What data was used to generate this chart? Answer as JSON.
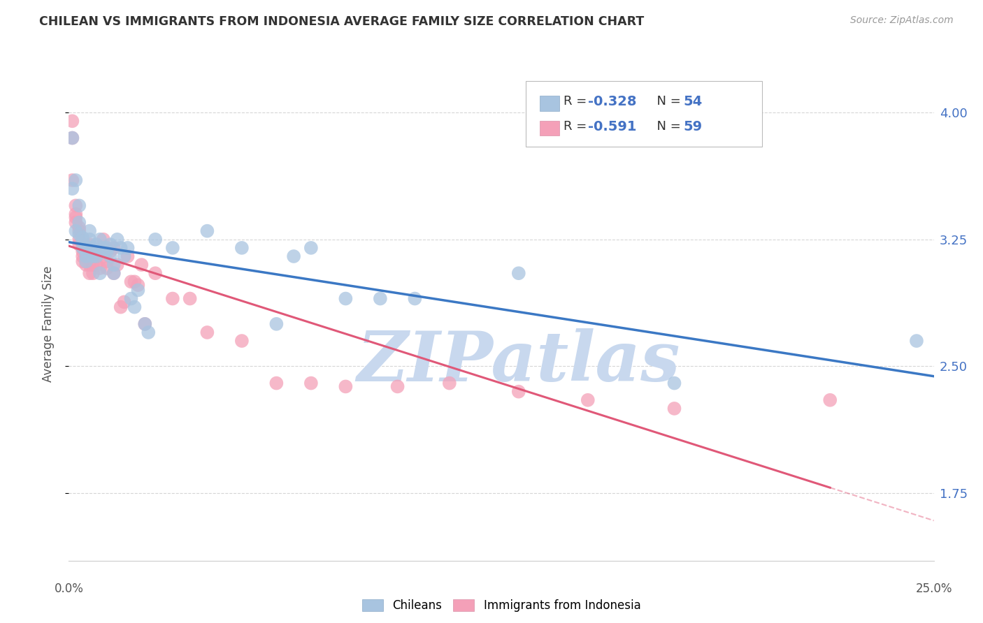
{
  "title": "CHILEAN VS IMMIGRANTS FROM INDONESIA AVERAGE FAMILY SIZE CORRELATION CHART",
  "source": "Source: ZipAtlas.com",
  "ylabel": "Average Family Size",
  "yticks": [
    1.75,
    2.5,
    3.25,
    4.0
  ],
  "xlim": [
    0.0,
    0.25
  ],
  "ylim": [
    1.35,
    4.15
  ],
  "watermark": "ZIPatlas",
  "legend_chilean_R": "-0.328",
  "legend_chilean_N": "54",
  "legend_indonesia_R": "-0.591",
  "legend_indonesia_N": "59",
  "blue_scatter_color": "#a8c4e0",
  "pink_scatter_color": "#f4a0b8",
  "blue_line_color": "#3b78c4",
  "pink_line_color": "#e05878",
  "grid_color": "#cccccc",
  "background_color": "#ffffff",
  "title_color": "#333333",
  "source_color": "#999999",
  "ytick_color": "#4472c4",
  "watermark_color": "#c8d8ee",
  "chilean_x": [
    0.001,
    0.001,
    0.002,
    0.002,
    0.003,
    0.003,
    0.003,
    0.004,
    0.004,
    0.004,
    0.005,
    0.005,
    0.005,
    0.005,
    0.006,
    0.006,
    0.006,
    0.007,
    0.007,
    0.007,
    0.008,
    0.008,
    0.009,
    0.009,
    0.01,
    0.01,
    0.011,
    0.011,
    0.012,
    0.012,
    0.013,
    0.013,
    0.014,
    0.015,
    0.016,
    0.017,
    0.018,
    0.019,
    0.02,
    0.022,
    0.023,
    0.025,
    0.03,
    0.04,
    0.05,
    0.06,
    0.065,
    0.07,
    0.08,
    0.09,
    0.1,
    0.13,
    0.175,
    0.245
  ],
  "chilean_y": [
    3.85,
    3.55,
    3.3,
    3.6,
    3.35,
    3.28,
    3.45,
    3.26,
    3.24,
    3.2,
    3.2,
    3.18,
    3.15,
    3.12,
    3.3,
    3.25,
    3.2,
    3.2,
    3.18,
    3.15,
    3.22,
    3.15,
    3.25,
    3.05,
    3.2,
    3.18,
    3.2,
    3.18,
    3.15,
    3.22,
    3.1,
    3.05,
    3.25,
    3.2,
    3.15,
    3.2,
    2.9,
    2.85,
    2.95,
    2.75,
    2.7,
    3.25,
    3.2,
    3.3,
    3.2,
    2.75,
    3.15,
    3.2,
    2.9,
    2.9,
    2.9,
    3.05,
    2.4,
    2.65
  ],
  "indonesia_x": [
    0.001,
    0.001,
    0.001,
    0.002,
    0.002,
    0.002,
    0.002,
    0.003,
    0.003,
    0.003,
    0.003,
    0.004,
    0.004,
    0.004,
    0.004,
    0.005,
    0.005,
    0.005,
    0.006,
    0.006,
    0.006,
    0.006,
    0.007,
    0.007,
    0.007,
    0.008,
    0.008,
    0.009,
    0.009,
    0.01,
    0.01,
    0.011,
    0.011,
    0.012,
    0.013,
    0.013,
    0.014,
    0.015,
    0.016,
    0.017,
    0.018,
    0.019,
    0.02,
    0.021,
    0.022,
    0.025,
    0.03,
    0.035,
    0.04,
    0.05,
    0.06,
    0.07,
    0.08,
    0.095,
    0.11,
    0.13,
    0.15,
    0.175,
    0.22
  ],
  "indonesia_y": [
    3.95,
    3.85,
    3.6,
    3.45,
    3.4,
    3.38,
    3.35,
    3.32,
    3.3,
    3.25,
    3.22,
    3.2,
    3.18,
    3.15,
    3.12,
    3.2,
    3.15,
    3.1,
    3.22,
    3.18,
    3.1,
    3.05,
    3.2,
    3.1,
    3.05,
    3.15,
    3.1,
    3.18,
    3.08,
    3.15,
    3.25,
    3.12,
    3.08,
    3.18,
    3.2,
    3.05,
    3.1,
    2.85,
    2.88,
    3.15,
    3.0,
    3.0,
    2.98,
    3.1,
    2.75,
    3.05,
    2.9,
    2.9,
    2.7,
    2.65,
    2.4,
    2.4,
    2.38,
    2.38,
    2.4,
    2.35,
    2.3,
    2.25,
    2.3
  ]
}
